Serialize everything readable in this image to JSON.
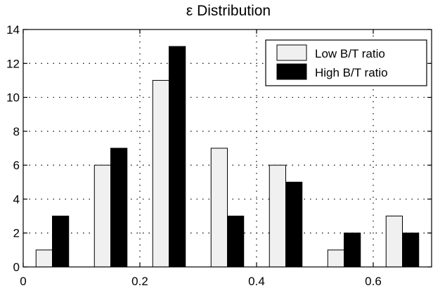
{
  "chart_data": {
    "type": "bar",
    "title": "ε Distribution",
    "xlabel": "",
    "ylabel": "",
    "categories": [
      0.05,
      0.15,
      0.25,
      0.35,
      0.45,
      0.55,
      0.65
    ],
    "series": [
      {
        "name": "Low B/T ratio",
        "values": [
          1,
          6,
          11,
          7,
          6,
          1,
          3
        ],
        "color": "#f0f0f0"
      },
      {
        "name": "High B/T ratio",
        "values": [
          3,
          7,
          13,
          3,
          5,
          2,
          2
        ],
        "color": "#000000"
      }
    ],
    "xlim": [
      0,
      0.7
    ],
    "ylim": [
      0,
      14
    ],
    "xticks": [
      "0",
      "0.2",
      "0.4",
      "0.6"
    ],
    "xtick_values": [
      0,
      0.2,
      0.4,
      0.6
    ],
    "yticks": [
      "0",
      "2",
      "4",
      "6",
      "8",
      "10",
      "12",
      "14"
    ],
    "ytick_values": [
      0,
      2,
      4,
      6,
      8,
      10,
      12,
      14
    ],
    "grid": "dotted-horizontal",
    "legend_position": "top-right"
  }
}
